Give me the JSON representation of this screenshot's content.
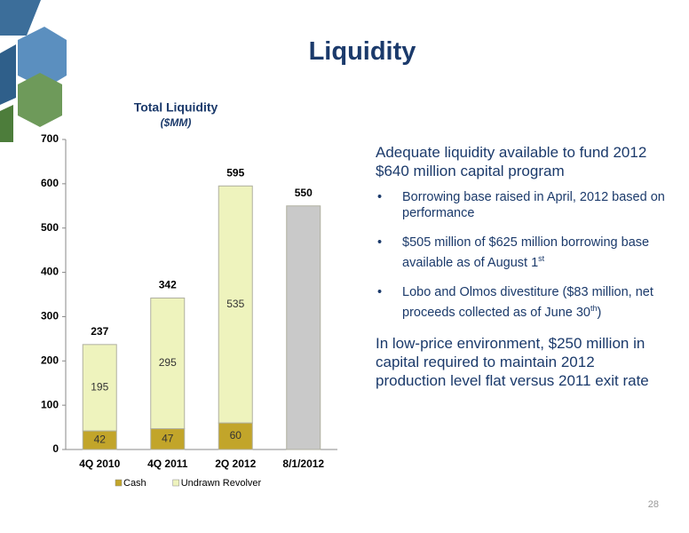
{
  "header": {
    "title": "Liquidity",
    "page_number": "28"
  },
  "chart_data": {
    "type": "stacked-bar",
    "title": "Total Liquidity",
    "subtitle": "($MM)",
    "categories": [
      "4Q 2010",
      "4Q 2011",
      "2Q 2012",
      "8/1/2012"
    ],
    "series": [
      {
        "name": "Cash",
        "color": "#c2a52a",
        "values": [
          42,
          47,
          60,
          null
        ],
        "label_position": "inside"
      },
      {
        "name": "Undrawn Revolver",
        "color": "#eef3bd",
        "values": [
          195,
          295,
          535,
          null
        ],
        "label_position": "inside"
      },
      {
        "color": "#c9c9c9",
        "values": [
          null,
          null,
          null,
          550
        ],
        "label_position": "top"
      }
    ],
    "totals": [
      237,
      342,
      595,
      null
    ],
    "ylim": [
      0,
      700
    ],
    "yticks": [
      0,
      100,
      200,
      300,
      400,
      500,
      600,
      700
    ],
    "grid": false
  },
  "text": {
    "heading1": "Adequate liquidity available to fund 2012 $640 million capital program",
    "bullets": [
      {
        "before": "Borrowing base raised in April, 2012 based on performance"
      },
      {
        "before": "$505 million of $625 million borrowing base available as of August 1",
        "sup": "st"
      },
      {
        "before": "Lobo and Olmos divestiture ($83 million, net proceeds collected as of June 30",
        "sup": "th",
        "after": ")"
      }
    ],
    "heading2": "In low-price environment, $250 million in capital required to maintain 2012 production level flat versus 2011 exit rate"
  }
}
